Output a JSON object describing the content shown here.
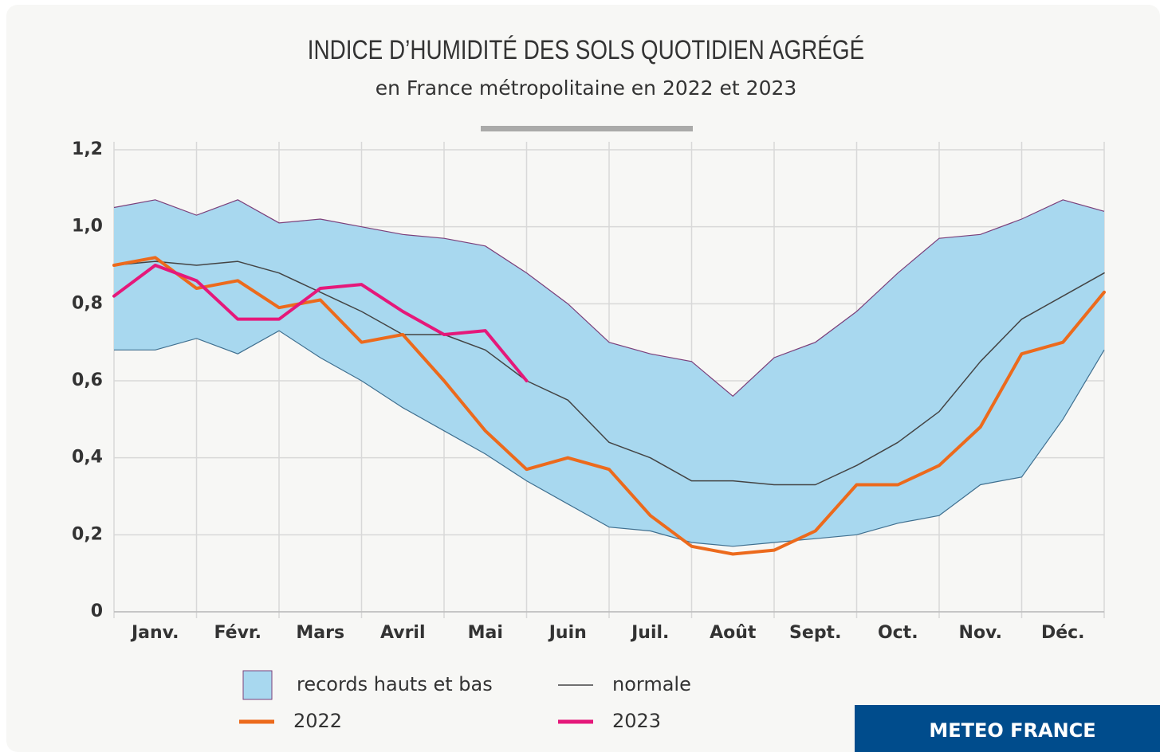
{
  "chart_data": {
    "type": "line",
    "title": "INDICE D’HUMIDITÉ DES SOLS QUOTIDIEN AGRÉGÉ",
    "subtitle": "en France métropolitaine en 2022 et 2023",
    "brand": "METEO FRANCE",
    "x": [
      0,
      0.5,
      1,
      1.5,
      2,
      2.5,
      3,
      3.5,
      4,
      4.5,
      5,
      5.5,
      6,
      6.5,
      7,
      7.5,
      8,
      8.5,
      9,
      9.5,
      10,
      10.5,
      11,
      11.5,
      12
    ],
    "xlim": [
      0,
      12
    ],
    "xticks": [
      {
        "value": 0.5,
        "label": "Janv."
      },
      {
        "value": 1.5,
        "label": "Févr."
      },
      {
        "value": 2.5,
        "label": "Mars"
      },
      {
        "value": 3.5,
        "label": "Avril"
      },
      {
        "value": 4.5,
        "label": "Mai"
      },
      {
        "value": 5.5,
        "label": "Juin"
      },
      {
        "value": 6.5,
        "label": "Juil."
      },
      {
        "value": 7.5,
        "label": "Août"
      },
      {
        "value": 8.5,
        "label": "Sept."
      },
      {
        "value": 9.5,
        "label": "Oct."
      },
      {
        "value": 10.5,
        "label": "Nov."
      },
      {
        "value": 11.5,
        "label": "Déc."
      }
    ],
    "ylim": [
      0,
      1.2
    ],
    "yticks": [
      0,
      {
        "value": 0.2,
        "label": "0,2"
      },
      {
        "value": 0.4,
        "label": "0,4"
      },
      {
        "value": 0.6,
        "label": "0,6"
      },
      {
        "value": 0.8,
        "label": "0,8"
      },
      {
        "value": 1.0,
        "label": "1,0"
      },
      {
        "value": 1.2,
        "label": "1,2"
      }
    ],
    "grid": true,
    "band": {
      "name": "records hauts et bas",
      "color": "#a8d8ef",
      "edge_color": "#7b3f7a",
      "high": [
        1.05,
        1.07,
        1.03,
        1.07,
        1.01,
        1.02,
        1.0,
        0.98,
        0.97,
        0.95,
        0.88,
        0.8,
        0.7,
        0.67,
        0.65,
        0.56,
        0.66,
        0.7,
        0.78,
        0.88,
        0.97,
        0.98,
        1.02,
        1.07,
        1.04
      ],
      "low": [
        0.68,
        0.68,
        0.71,
        0.67,
        0.73,
        0.66,
        0.6,
        0.53,
        0.47,
        0.41,
        0.34,
        0.28,
        0.22,
        0.21,
        0.18,
        0.17,
        0.18,
        0.19,
        0.2,
        0.23,
        0.25,
        0.33,
        0.35,
        0.5,
        0.68
      ]
    },
    "series": [
      {
        "name": "normale",
        "color": "#444444",
        "width": 1.5,
        "values": [
          0.9,
          0.91,
          0.9,
          0.91,
          0.88,
          0.83,
          0.78,
          0.72,
          0.72,
          0.68,
          0.6,
          0.55,
          0.44,
          0.4,
          0.34,
          0.34,
          0.33,
          0.33,
          0.38,
          0.44,
          0.52,
          0.65,
          0.76,
          0.82,
          0.88
        ]
      },
      {
        "name": "2022",
        "color": "#ec6a1c",
        "width": 4,
        "values": [
          0.9,
          0.92,
          0.84,
          0.86,
          0.79,
          0.81,
          0.7,
          0.72,
          0.6,
          0.47,
          0.37,
          0.4,
          0.37,
          0.25,
          0.17,
          0.15,
          0.16,
          0.21,
          0.33,
          0.33,
          0.38,
          0.48,
          0.67,
          0.7,
          0.83
        ]
      },
      {
        "name": "2023",
        "color": "#e5187a",
        "width": 4,
        "values": [
          0.82,
          0.9,
          0.86,
          0.76,
          0.76,
          0.84,
          0.85,
          0.78,
          0.72,
          0.73,
          0.6,
          null,
          null,
          null,
          null,
          null,
          null,
          null,
          null,
          null,
          null,
          null,
          null,
          null,
          null
        ]
      }
    ]
  }
}
